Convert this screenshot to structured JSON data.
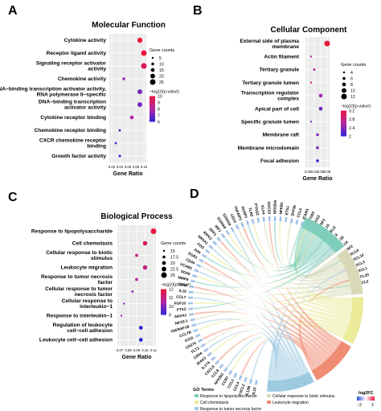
{
  "panels": {
    "A": {
      "letter": "A"
    },
    "B": {
      "letter": "B"
    },
    "C": {
      "letter": "C"
    },
    "D": {
      "letter": "D"
    }
  },
  "legend_labels": {
    "gene_counts": "Gene counts",
    "pvalue": "−log10(p-value)"
  },
  "colors": {
    "high": "#e8173c",
    "mid": "#b327a4",
    "low": "#2b24d6",
    "gray_bg": "#ebebeb"
  },
  "chart_data": [
    {
      "panel": "A",
      "type": "scatter",
      "title": "Molecular Function",
      "xlabel": "Gene Ratio",
      "ylabel": "",
      "x_ticks": [
        "0.02",
        "0.04",
        "0.06",
        "0.08",
        "0.10"
      ],
      "xlim": [
        0.02,
        0.1
      ],
      "categories": [
        "Cytokine activity",
        "Receptor ligand activity",
        "Signaling receptor activator activity",
        "Chemokine activity",
        "DNA−binding transcription activator activity, RNA polymerase II−specific",
        "DNA−binding transcription activator activity",
        "Cytokine receptor binding",
        "Chemokine receptor binding",
        "CXCR chemokine receptor binding",
        "Growth factor activity"
      ],
      "x": [
        0.09,
        0.1,
        0.1,
        0.05,
        0.09,
        0.09,
        0.07,
        0.04,
        0.03,
        0.04
      ],
      "gene_counts": [
        22,
        25,
        25,
        10,
        20,
        20,
        15,
        7,
        6,
        8
      ],
      "neg_log10_p": [
        10.5,
        10,
        9.5,
        7.5,
        7,
        7,
        8,
        6,
        6.2,
        5.5
      ],
      "size_legend": {
        "title": "Gene counts",
        "values": [
          5,
          10,
          15,
          20,
          25
        ]
      },
      "color_legend": {
        "title": "−log10(p-value)",
        "ticks": [
          10,
          9,
          8,
          7,
          6
        ]
      }
    },
    {
      "panel": "B",
      "type": "scatter",
      "title": "Cellular Component",
      "xlabel": "Gene Ratio",
      "ylabel": "",
      "x_ticks": [
        "0.02",
        "0.04",
        "0.06",
        "0.08"
      ],
      "xlim": [
        0.02,
        0.08
      ],
      "categories": [
        "External side of plasma membrane",
        "Actin filament",
        "Tertiary granule",
        "Tertiary granule lumen",
        "Transcription regulator complex",
        "Apical part of cell",
        "Specific granule lumen",
        "Membrane raft",
        "Membrane microdomain",
        "Focal adhesion"
      ],
      "x": [
        0.08,
        0.03,
        0.04,
        0.03,
        0.06,
        0.06,
        0.03,
        0.05,
        0.05,
        0.05
      ],
      "gene_counts": [
        12,
        4,
        5,
        4,
        8,
        8,
        4,
        6,
        6,
        6
      ],
      "neg_log10_p": [
        3.3,
        2.7,
        2.6,
        2.8,
        2.5,
        2.3,
        2.3,
        2.4,
        2.4,
        2.0
      ],
      "size_legend": {
        "title": "Gene counts",
        "values": [
          4,
          6,
          8,
          10,
          12
        ]
      },
      "color_legend": {
        "title": "−log10(p-value)",
        "ticks": [
          3.2,
          2.8,
          2.4,
          2.0
        ]
      }
    },
    {
      "panel": "C",
      "type": "scatter",
      "title": "Biological Process",
      "xlabel": "Gene Ratio",
      "ylabel": "",
      "x_ticks": [
        "0.07",
        "0.08",
        "0.09",
        "0.10",
        "0.11"
      ],
      "xlim": [
        0.07,
        0.11
      ],
      "categories": [
        "Response to lipopolysaccharide",
        "Cell chemotaxis",
        "Cellular response to biotic stimulus",
        "Leukocyte migration",
        "Response to tumor necrosis factor",
        "Cellular response to tumor necrosis factor",
        "Cellular response to interleukin−1",
        "Response to interleukin−1",
        "Regulation of leukocyte cell−cell adhesion",
        "Leukocyte cell−cell adhesion"
      ],
      "x": [
        0.11,
        0.1,
        0.09,
        0.1,
        0.09,
        0.085,
        0.075,
        0.072,
        0.095,
        0.095
      ],
      "gene_counts": [
        25,
        22,
        18,
        22,
        18,
        16,
        15,
        15,
        20,
        20
      ],
      "neg_log10_p": [
        12.5,
        11.5,
        11,
        11,
        10.5,
        10,
        10,
        10,
        9,
        9
      ],
      "size_legend": {
        "title": "Gene counts",
        "values": [
          15.0,
          17.5,
          20.0,
          22.5,
          25.0
        ]
      },
      "color_legend": {
        "title": "−log10(p-value)",
        "ticks": [
          12,
          11,
          10,
          9
        ]
      }
    }
  ],
  "chord": {
    "genes_right": [
      "CCL2",
      "CCL20",
      "CXCL1",
      "CXCL3",
      "CXCL10",
      "CXCL8",
      "CSF2",
      "IL1A",
      "IL1B",
      "IL6",
      "SELE",
      "IL16",
      "CSF3",
      "NOS2",
      "ITGB2",
      "ICAM1",
      "CCL5"
    ],
    "genes_left": [
      "ZFP36",
      "ETS1",
      "NFKB1",
      "NFKBIA",
      "SOCS3",
      "KLF4",
      "PTGS2",
      "TLR2",
      "DUSP1",
      "TNFAIP3",
      "CD14",
      "S100A8",
      "S100A9",
      "IRF1",
      "SPP1",
      "RIPK2",
      "NR4A1",
      "FOS",
      "JUN",
      "EGR1",
      "CD44",
      "VCAM1",
      "SOX9",
      "MMP9",
      "CD40",
      "IL18",
      "CCL7",
      "FGF10",
      "PTX3",
      "ANXA1",
      "NKX2-1",
      "TNFRSF1B",
      "CCL7B",
      "ICOS",
      "CD274",
      "FLT3",
      "CPPA",
      "IRAK3",
      "IL17A",
      "CXCL9",
      "CCL8",
      "NFKBIZ",
      "CCR7",
      "CCL3",
      "CCL4",
      "CXCL2",
      "IL12B",
      "IL10"
    ],
    "go_terms_title": "GO Terms",
    "go_terms": [
      {
        "name": "Response to lipopolysaccharide",
        "color": "#7fcdbb"
      },
      {
        "name": "Cellular response to biotic stimulus",
        "color": "#d9d9b8"
      },
      {
        "name": "Cell chemotaxis",
        "color": "#ebeb9a"
      },
      {
        "name": "Leukocyte migration",
        "color": "#f08c74"
      },
      {
        "name": "Response to tumor necrosis factor",
        "color": "#9ecae1"
      }
    ],
    "logfc_label": "log2FC",
    "logfc_ticks": [
      "−3",
      "3"
    ]
  }
}
